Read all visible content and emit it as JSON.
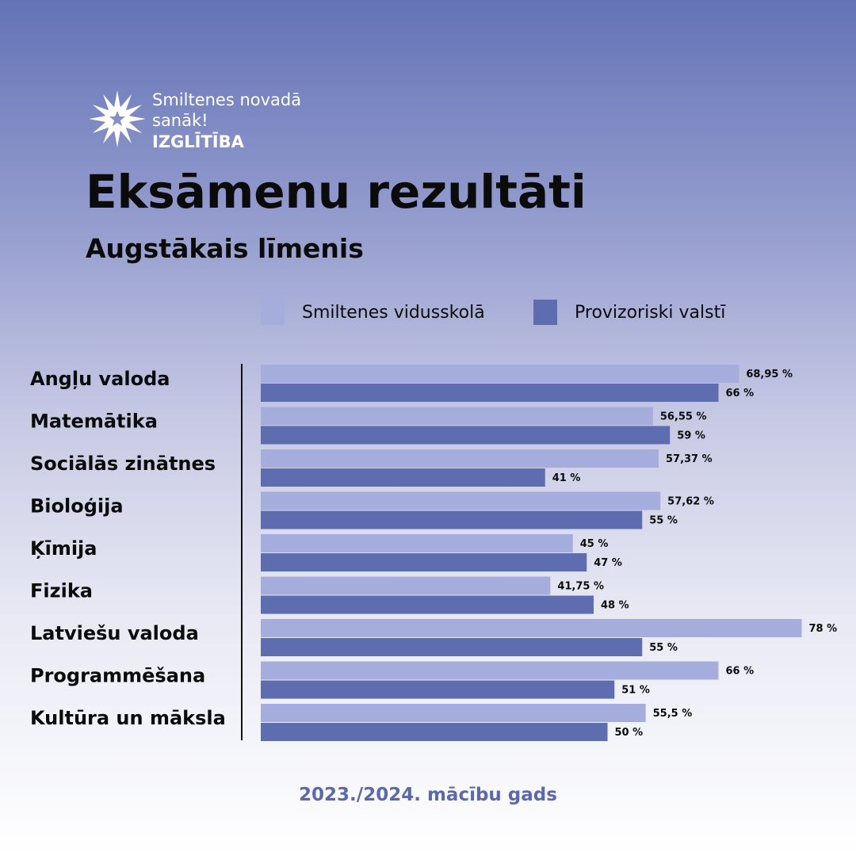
{
  "logo": {
    "line1": "Smiltenes novadā",
    "line2": "sanāk!",
    "line3": "IZGLĪTĪBA",
    "icon": "snowflake-burst-icon"
  },
  "title": "Eksāmenu rezultāti",
  "subtitle": "Augstākais līmenis",
  "legend": [
    {
      "label": "Smiltenes vidusskolā",
      "color": "#a5addc"
    },
    {
      "label": "Provizoriski valstī",
      "color": "#5e6cb0"
    }
  ],
  "footer": "2023./2024. mācību gads",
  "chart_data": {
    "type": "bar",
    "orientation": "horizontal",
    "categories": [
      "Angļu valoda",
      "Matemātika",
      "Sociālās zinātnes",
      "Bioloģija",
      "Ķīmija",
      "Fizika",
      "Latviešu valoda",
      "Programmēšana",
      "Kultūra un māksla"
    ],
    "series": [
      {
        "name": "Smiltenes vidusskolā",
        "color": "#a5addc",
        "values": [
          68.95,
          56.55,
          57.37,
          57.62,
          45,
          41.75,
          78,
          66,
          55.5
        ],
        "labels": [
          "68,95 %",
          "56,55 %",
          "57,37 %",
          "57,62 %",
          "45 %",
          "41,75 %",
          "78 %",
          "66 %",
          "55,5 %"
        ]
      },
      {
        "name": "Provizoriski valstī",
        "color": "#5e6cb0",
        "values": [
          66,
          59,
          41,
          55,
          47,
          48,
          55,
          51,
          50
        ],
        "labels": [
          "66 %",
          "59 %",
          "41 %",
          "55 %",
          "47 %",
          "48 %",
          "55 %",
          "51 %",
          "50 %"
        ]
      }
    ],
    "xlim": [
      0,
      100
    ],
    "grid": false,
    "legend": "top"
  }
}
